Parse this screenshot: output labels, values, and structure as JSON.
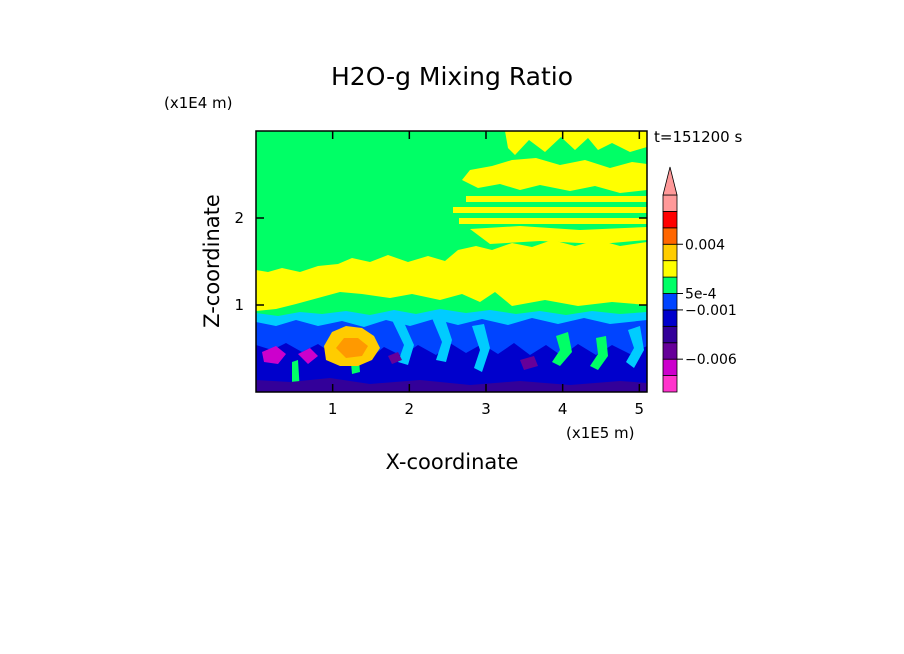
{
  "chart_data": {
    "type": "heatmap",
    "title": "H2O-g Mixing Ratio",
    "xlabel": "X-coordinate",
    "ylabel": "Z-coordinate",
    "x_scale_label": "(x1E5 m)",
    "y_scale_label": "(x1E4 m)",
    "time_label": "t=151200 s",
    "xlim": [
      0,
      5.1
    ],
    "ylim": [
      0,
      3.0
    ],
    "x_ticks": [
      "1",
      "2",
      "3",
      "4",
      "5"
    ],
    "x_tick_values": [
      1,
      2,
      3,
      4,
      5
    ],
    "y_ticks": [
      "1",
      "2"
    ],
    "y_tick_values": [
      1,
      2
    ],
    "colorbar": {
      "labels": [
        "0.004",
        "5e-4",
        "−0.001",
        "−0.006"
      ],
      "label_levels": [
        9,
        6,
        5,
        2
      ],
      "levels": 11,
      "colors": [
        "#ff33cc",
        "#cc00cc",
        "#660099",
        "#330099",
        "#0000cc",
        "#0044ff",
        "#00ff66",
        "#ffff00",
        "#ffcc00",
        "#ff6600",
        "#ff0000",
        "#ff9999"
      ],
      "extend_top": true
    },
    "fields": [
      {
        "name": "background",
        "color": "#00ff66"
      },
      {
        "name": "upper-moist-band",
        "color": "#ffff00"
      },
      {
        "name": "lower-layer",
        "color": "#0044ff"
      },
      {
        "name": "cyan-layer",
        "color": "#00ccff"
      },
      {
        "name": "dry-surface-layer",
        "color": "#0000cc"
      },
      {
        "name": "orange-blob",
        "color": "#ffcc00"
      },
      {
        "name": "purple-patches",
        "color": "#cc00cc"
      }
    ]
  }
}
